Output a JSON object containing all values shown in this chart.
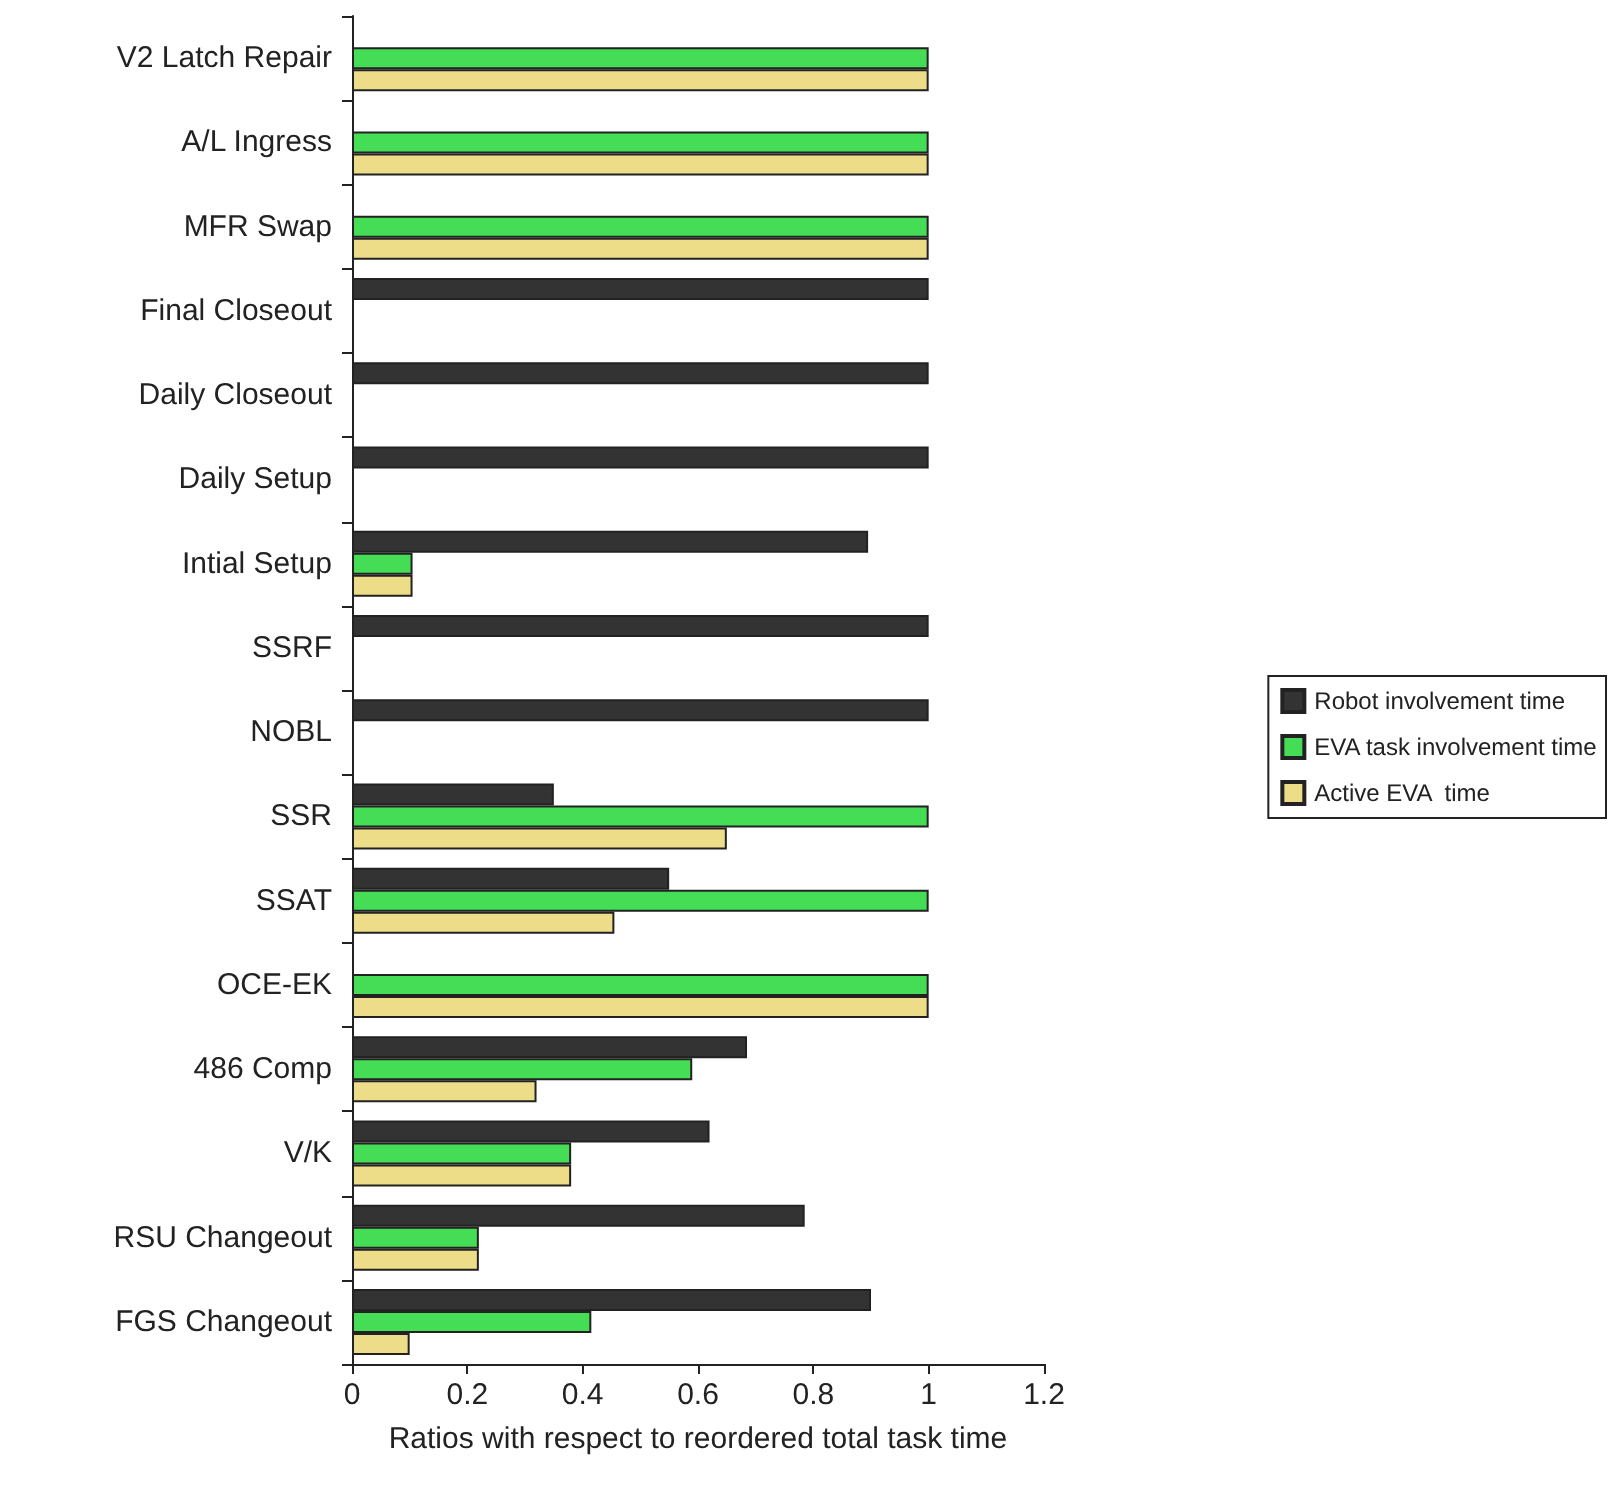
{
  "chart_data": {
    "type": "bar",
    "orientation": "horizontal",
    "xlabel": "Ratios with respect to reordered total task time",
    "categories": [
      "V2 Latch Repair",
      "A/L Ingress",
      "MFR Swap",
      "Final Closeout",
      "Daily Closeout",
      "Daily Setup",
      "Intial Setup",
      "SSRF",
      "NOBL",
      "SSR",
      "SSAT",
      "OCE-EK",
      "486 Comp",
      "V/K",
      "RSU Changeout",
      "FGS Changeout"
    ],
    "series": [
      {
        "name": "Robot involvement time",
        "color": "#333333",
        "values": [
          null,
          null,
          null,
          1,
          1,
          1,
          0.895,
          1,
          1,
          0.35,
          0.55,
          null,
          0.685,
          0.62,
          0.785,
          0.9
        ]
      },
      {
        "name": "EVA task involvement time",
        "color": "#44dd55",
        "values": [
          1,
          1,
          1,
          null,
          null,
          null,
          0.105,
          null,
          null,
          1,
          1,
          1,
          0.59,
          0.38,
          0.22,
          0.415
        ]
      },
      {
        "name": "Active EVA  time",
        "color": "#eedd88",
        "values": [
          1,
          1,
          1,
          null,
          null,
          null,
          0.105,
          null,
          null,
          0.65,
          0.455,
          1,
          0.32,
          0.38,
          0.22,
          0.1
        ]
      }
    ],
    "xlim": [
      0,
      1.2
    ],
    "xticks": [
      0,
      0.2,
      0.4,
      0.6,
      0.8,
      1,
      1.2
    ],
    "grid": false,
    "legend": "right"
  }
}
